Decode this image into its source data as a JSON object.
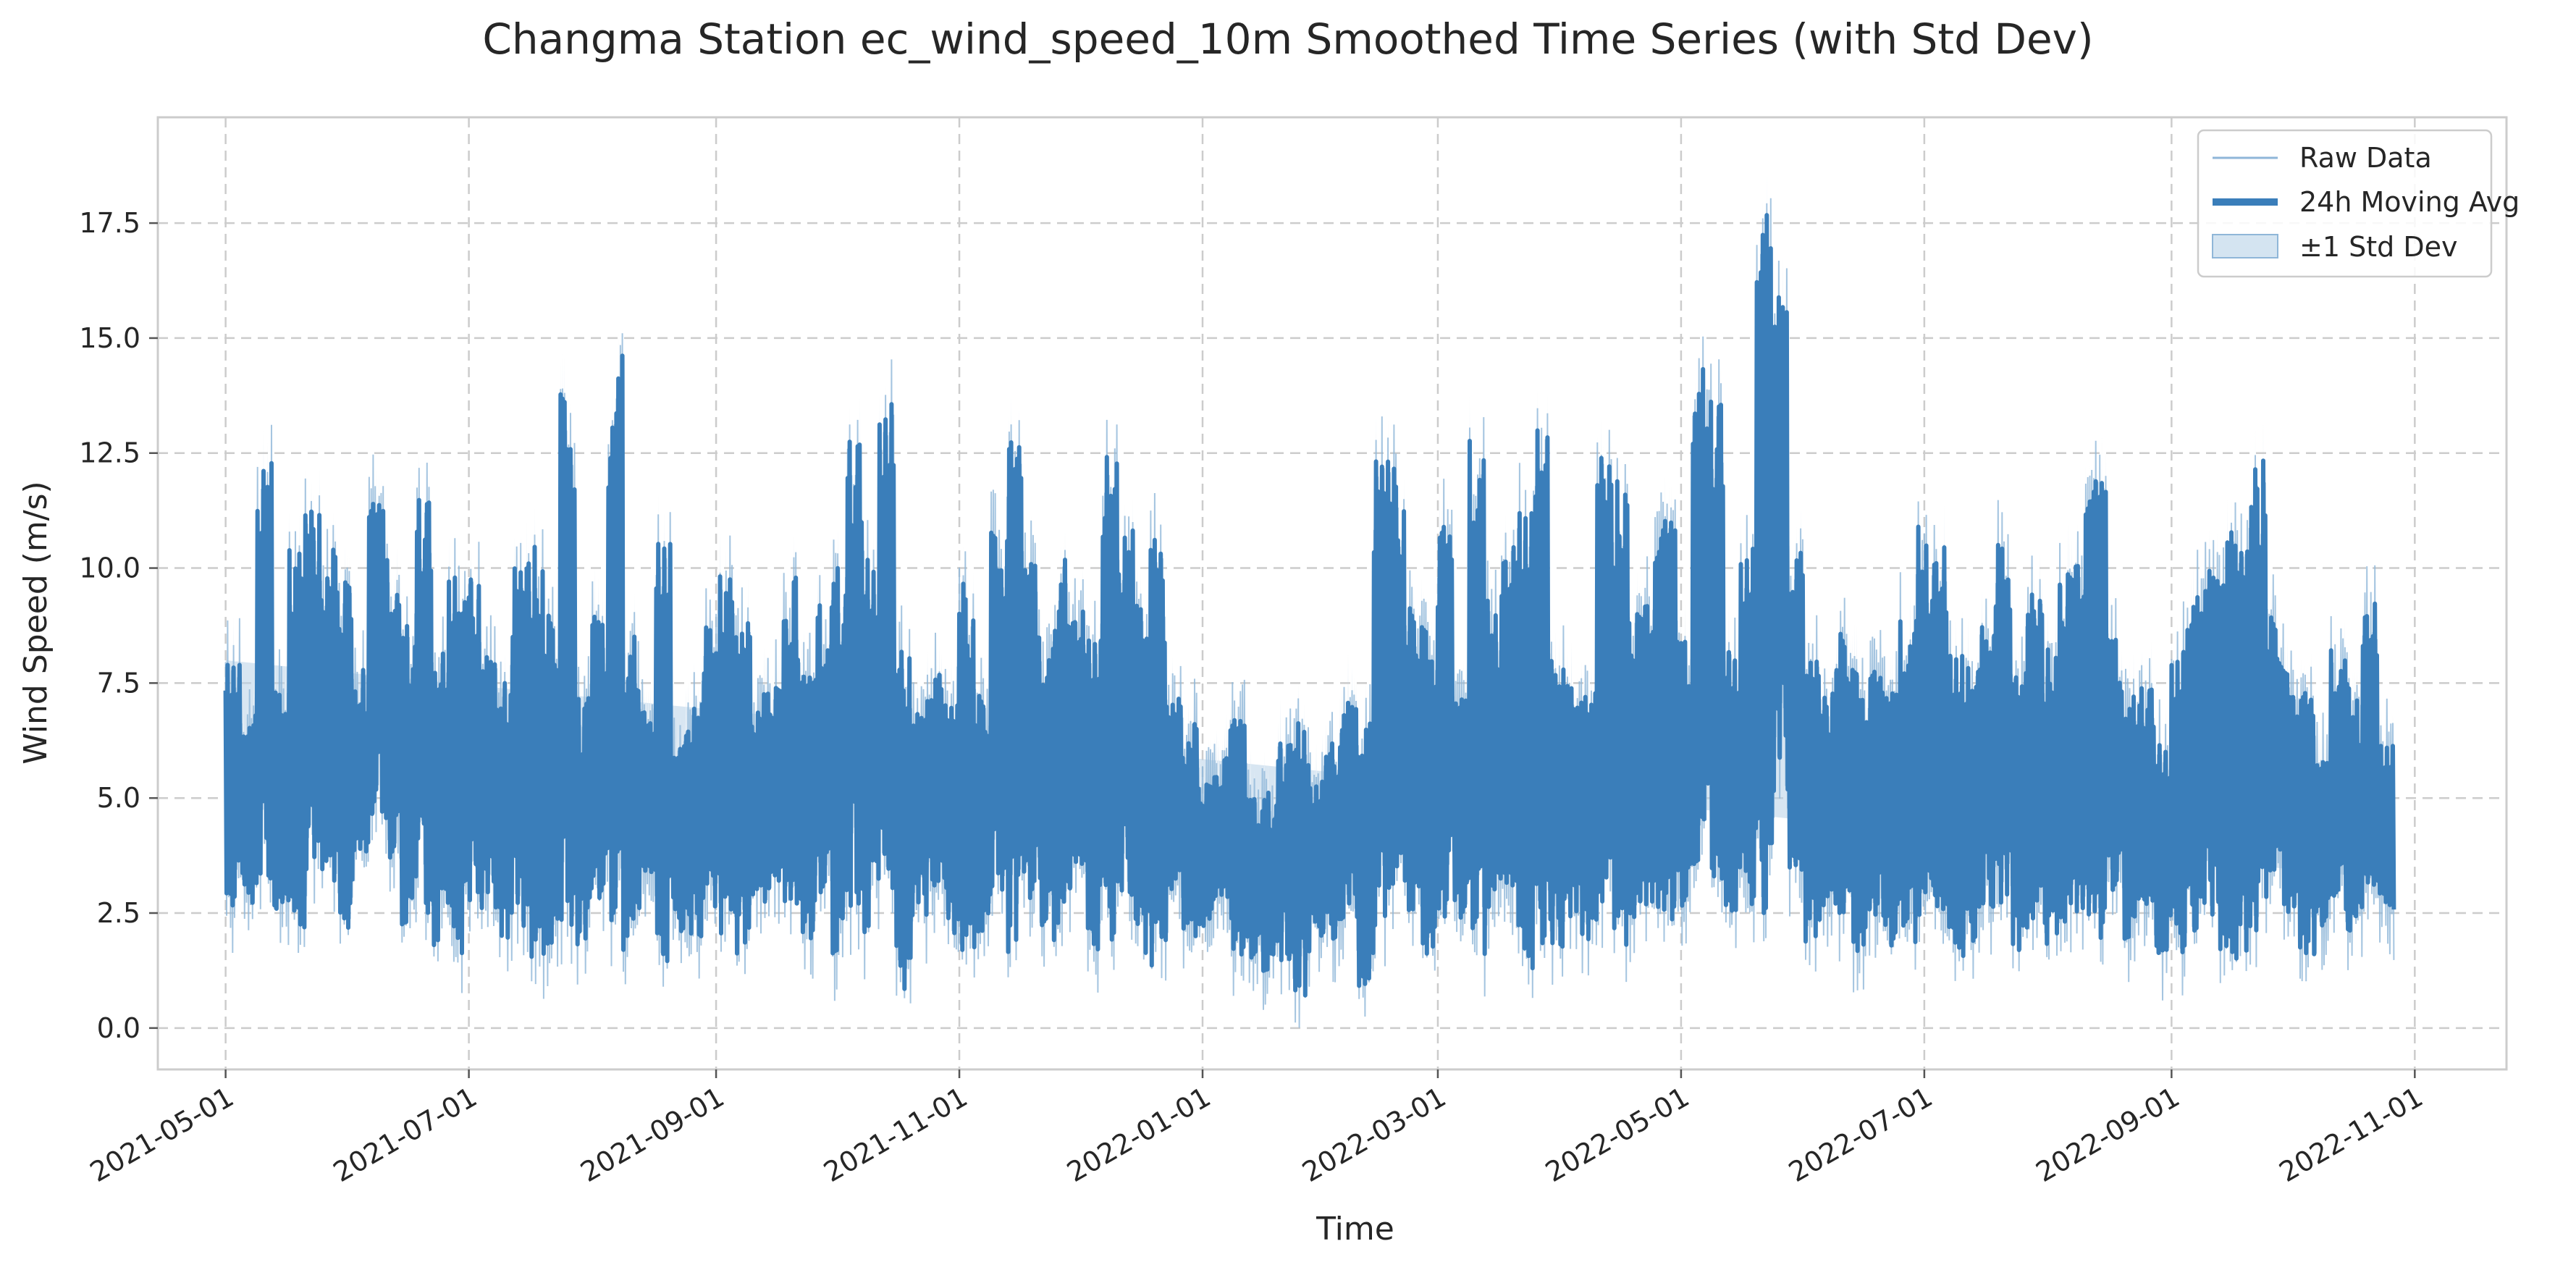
{
  "chart_data": {
    "type": "line",
    "title": "Changma Station ec_wind_speed_10m Smoothed Time Series (with Std Dev)",
    "xlabel": "Time",
    "ylabel": "Wind Speed (m/s)",
    "xlim": [
      "2021-04-14",
      "2022-11-24"
    ],
    "ylim": [
      -0.9,
      19.8
    ],
    "x_ticks": [
      "2021-05-01",
      "2021-07-01",
      "2021-09-01",
      "2021-11-01",
      "2022-01-01",
      "2022-03-01",
      "2022-05-01",
      "2022-07-01",
      "2022-09-01",
      "2022-11-01"
    ],
    "y_ticks": [
      "0.0",
      "2.5",
      "5.0",
      "7.5",
      "10.0",
      "12.5",
      "15.0",
      "17.5"
    ],
    "grid": true,
    "legend_position": "top-right",
    "legend": [
      "Raw Data",
      "24h Moving Avg",
      "±1 Std Dev"
    ],
    "colors": {
      "raw": "#8fb6d8",
      "avg": "#3a7eba",
      "band": "#b8d2e8"
    },
    "series": [
      {
        "name": "24h Moving Avg",
        "x": [
          "2021-05-01",
          "2021-05-05",
          "2021-05-09",
          "2021-05-13",
          "2021-05-17",
          "2021-05-21",
          "2021-05-25",
          "2021-05-29",
          "2021-06-02",
          "2021-06-06",
          "2021-06-10",
          "2021-06-14",
          "2021-06-18",
          "2021-06-22",
          "2021-06-26",
          "2021-06-30",
          "2021-07-04",
          "2021-07-08",
          "2021-07-12",
          "2021-07-16",
          "2021-07-20",
          "2021-07-24",
          "2021-07-28",
          "2021-08-01",
          "2021-08-05",
          "2021-08-09",
          "2021-08-13",
          "2021-08-17",
          "2021-08-21",
          "2021-08-25",
          "2021-08-29",
          "2021-09-02",
          "2021-09-06",
          "2021-09-10",
          "2021-09-14",
          "2021-09-18",
          "2021-09-22",
          "2021-09-26",
          "2021-09-30",
          "2021-10-04",
          "2021-10-08",
          "2021-10-12",
          "2021-10-16",
          "2021-10-20",
          "2021-10-24",
          "2021-10-28",
          "2021-11-01",
          "2021-11-05",
          "2021-11-09",
          "2021-11-13",
          "2021-11-17",
          "2021-11-21",
          "2021-11-25",
          "2021-11-29",
          "2021-12-03",
          "2021-12-07",
          "2021-12-11",
          "2021-12-15",
          "2021-12-19",
          "2021-12-23",
          "2021-12-27",
          "2021-12-31",
          "2022-01-04",
          "2022-01-08",
          "2022-01-12",
          "2022-01-16",
          "2022-01-20",
          "2022-01-24",
          "2022-01-28",
          "2022-02-01",
          "2022-02-05",
          "2022-02-09",
          "2022-02-13",
          "2022-02-17",
          "2022-02-21",
          "2022-02-25",
          "2022-03-01",
          "2022-03-05",
          "2022-03-09",
          "2022-03-13",
          "2022-03-17",
          "2022-03-21",
          "2022-03-25",
          "2022-03-29",
          "2022-04-02",
          "2022-04-06",
          "2022-04-10",
          "2022-04-14",
          "2022-04-18",
          "2022-04-22",
          "2022-04-26",
          "2022-04-30",
          "2022-05-04",
          "2022-05-08",
          "2022-05-12",
          "2022-05-16",
          "2022-05-20",
          "2022-05-24",
          "2022-05-28",
          "2022-06-01",
          "2022-06-05",
          "2022-06-09",
          "2022-06-13",
          "2022-06-17",
          "2022-06-21",
          "2022-06-25",
          "2022-06-29",
          "2022-07-03",
          "2022-07-07",
          "2022-07-11",
          "2022-07-15",
          "2022-07-19",
          "2022-07-23",
          "2022-07-27",
          "2022-07-31",
          "2022-08-04",
          "2022-08-08",
          "2022-08-12",
          "2022-08-16",
          "2022-08-20",
          "2022-08-24",
          "2022-08-28",
          "2022-09-01",
          "2022-09-05",
          "2022-09-09",
          "2022-09-13",
          "2022-09-17",
          "2022-09-21",
          "2022-09-25",
          "2022-09-29",
          "2022-10-03",
          "2022-10-07",
          "2022-10-11",
          "2022-10-15",
          "2022-10-19",
          "2022-10-23",
          "2022-10-27",
          "2022-10-31"
        ],
        "min": [
          2.6,
          2.7,
          3.0,
          2.2,
          1.7,
          3.4,
          3.2,
          1.9,
          3.6,
          4.5,
          3.4,
          2.0,
          2.5,
          1.8,
          1.6,
          2.3,
          2.6,
          1.9,
          2.2,
          1.3,
          1.5,
          2.2,
          1.8,
          2.7,
          1.6,
          2.0,
          3.0,
          1.4,
          2.1,
          1.8,
          2.6,
          2.0,
          1.5,
          2.7,
          3.0,
          2.2,
          1.9,
          2.6,
          1.2,
          2.6,
          2.0,
          2.9,
          0.8,
          2.4,
          3.1,
          2.0,
          1.4,
          1.8,
          2.9,
          1.5,
          2.6,
          1.8,
          2.2,
          2.9,
          1.6,
          1.8,
          2.5,
          1.5,
          1.2,
          3.0,
          1.9,
          2.2,
          2.6,
          1.5,
          1.3,
          1.0,
          1.4,
          0.7,
          2.0,
          1.9,
          2.3,
          0.9,
          2.2,
          2.7,
          2.1,
          1.6,
          2.4,
          2.2,
          1.3,
          2.5,
          2.1,
          1.3,
          1.6,
          1.4,
          2.4,
          1.9,
          2.6,
          1.5,
          2.3,
          1.9,
          2.1,
          2.2,
          2.8,
          3.2,
          2.5,
          2.6,
          2.2,
          4.8,
          3.4,
          1.8,
          2.4,
          2.0,
          1.6,
          2.4,
          1.5,
          1.6,
          2.2,
          1.4,
          1.5,
          1.7,
          2.2,
          2.6,
          1.6,
          2.2,
          1.8,
          2.1,
          1.5,
          1.9,
          2.5,
          1.5,
          2.7,
          1.6,
          1.5,
          1.9,
          2.4,
          1.5,
          1.3,
          2.1,
          2.9,
          2.4,
          1.5,
          2.0,
          2.3,
          1.9,
          2.1,
          2.5
        ],
        "max": [
          8.0,
          6.8,
          12.3,
          7.4,
          10.5,
          11.4,
          10.4,
          9.8,
          7.8,
          11.4,
          10.4,
          8.9,
          11.7,
          8.3,
          10.0,
          9.8,
          8.1,
          7.6,
          10.2,
          10.8,
          9.0,
          14.0,
          7.2,
          9.0,
          15.0,
          8.7,
          7.0,
          10.8,
          6.4,
          7.1,
          8.9,
          10.0,
          8.8,
          7.3,
          7.5,
          9.8,
          7.7,
          9.2,
          10.3,
          13.1,
          10.2,
          13.6,
          8.3,
          6.9,
          7.7,
          7.2,
          9.7,
          7.3,
          11.0,
          12.8,
          10.1,
          8.5,
          10.5,
          9.1,
          8.7,
          12.5,
          11.0,
          9.5,
          10.7,
          7.2,
          6.7,
          5.4,
          5.9,
          6.8,
          5.0,
          5.3,
          6.4,
          6.7,
          5.4,
          6.3,
          7.2,
          6.7,
          12.8,
          12.3,
          9.3,
          9.0,
          10.9,
          7.2,
          12.9,
          9.3,
          10.6,
          11.7,
          13.2,
          8.0,
          7.7,
          7.3,
          12.4,
          11.9,
          9.3,
          10.4,
          11.3,
          8.5,
          14.4,
          14.2,
          8.3,
          10.6,
          17.8,
          16.3,
          10.5,
          8.0,
          7.3,
          8.8,
          8.1,
          7.8,
          7.4,
          9.0,
          11.0,
          10.7,
          8.5,
          8.0,
          8.8,
          11.0,
          7.8,
          9.5,
          8.3,
          10.3,
          11.6,
          12.3,
          8.6,
          7.3,
          7.7,
          6.3,
          8.4,
          9.5,
          10.3,
          11.1,
          10.5,
          12.5,
          9.2,
          8.1,
          7.4,
          5.9,
          8.4,
          7.5,
          9.5,
          6.4
        ]
      }
    ]
  }
}
